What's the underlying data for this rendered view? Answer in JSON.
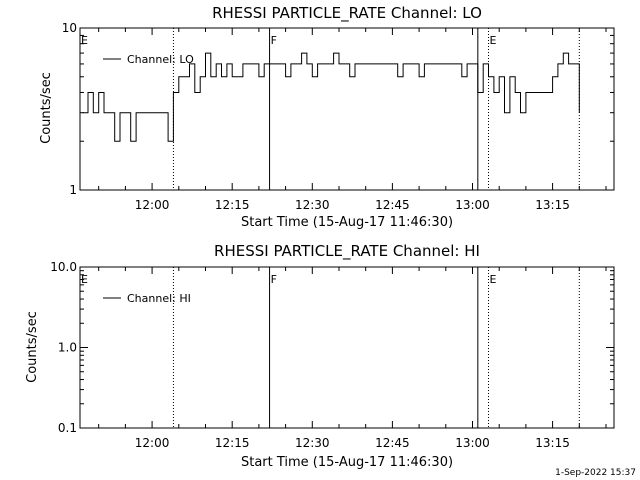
{
  "footer": {
    "date": "1-Sep-2022 15:37"
  },
  "chart_data": [
    {
      "type": "line",
      "title": "RHESSI PARTICLE_RATE Channel: LO",
      "xlabel": "Start Time (15-Aug-17 11:46:30)",
      "ylabel": "Counts/sec",
      "yscale": "log",
      "ylim": [
        1,
        10
      ],
      "xlim": [
        "11:46:30",
        "13:26:30"
      ],
      "xticks": [
        "12:00",
        "12:15",
        "12:30",
        "12:45",
        "13:00",
        "13:15"
      ],
      "yticks": [
        "1",
        "10"
      ],
      "legend": "Channel: LO",
      "legend_position": "top-left",
      "grid": false,
      "markers": [
        {
          "label": "E",
          "time": "11:46:30",
          "style": "none"
        },
        {
          "label": "",
          "time": "12:04:00",
          "style": "dotted"
        },
        {
          "label": "F",
          "time": "12:22:00",
          "style": "solid"
        },
        {
          "label": "",
          "time": "13:01:00",
          "style": "solid"
        },
        {
          "label": "E",
          "time": "13:03:00",
          "style": "dotted"
        },
        {
          "label": "",
          "time": "13:20:00",
          "style": "dotted"
        }
      ],
      "series": [
        {
          "name": "Channel: LO",
          "x": [
            "11:47",
            "11:48",
            "11:49",
            "11:50",
            "11:51",
            "11:52",
            "11:53",
            "11:54",
            "11:55",
            "11:56",
            "11:57",
            "11:58",
            "11:59",
            "12:00",
            "12:01",
            "12:02",
            "12:03",
            "12:04",
            "12:05",
            "12:06",
            "12:07",
            "12:08",
            "12:09",
            "12:10",
            "12:11",
            "12:12",
            "12:13",
            "12:14",
            "12:15",
            "12:16",
            "12:17",
            "12:18",
            "12:19",
            "12:20",
            "12:21",
            "12:22",
            "12:23",
            "12:24",
            "12:25",
            "12:26",
            "12:27",
            "12:28",
            "12:29",
            "12:30",
            "12:31",
            "12:32",
            "12:33",
            "12:34",
            "12:35",
            "12:36",
            "12:37",
            "12:38",
            "12:39",
            "12:40",
            "12:41",
            "12:42",
            "12:43",
            "12:44",
            "12:45",
            "12:46",
            "12:47",
            "12:48",
            "12:49",
            "12:50",
            "12:51",
            "12:52",
            "12:53",
            "12:54",
            "12:55",
            "12:56",
            "12:57",
            "12:58",
            "12:59",
            "13:00",
            "13:01",
            "13:02",
            "13:03",
            "13:04",
            "13:05",
            "13:06",
            "13:07",
            "13:08",
            "13:09",
            "13:10",
            "13:11",
            "13:12",
            "13:13",
            "13:14",
            "13:15",
            "13:16",
            "13:17",
            "13:18",
            "13:19",
            "13:20"
          ],
          "values": [
            3,
            4,
            3,
            4,
            3,
            3,
            2,
            3,
            3,
            2,
            3,
            3,
            3,
            3,
            3,
            3,
            2,
            4,
            5,
            5,
            6,
            4,
            5,
            7,
            5,
            6,
            5,
            6,
            5,
            5,
            6,
            6,
            6,
            5,
            6,
            6,
            6,
            6,
            5,
            6,
            6,
            7,
            6,
            5,
            6,
            6,
            6,
            7,
            6,
            6,
            5,
            6,
            6,
            6,
            6,
            6,
            6,
            6,
            6,
            5,
            6,
            6,
            6,
            5,
            6,
            6,
            6,
            6,
            6,
            6,
            6,
            5,
            6,
            6,
            4,
            6,
            5,
            4,
            5,
            3,
            5,
            4,
            3,
            4,
            4,
            4,
            4,
            4,
            5,
            6,
            7,
            6,
            6,
            3
          ]
        }
      ]
    },
    {
      "type": "line",
      "title": "RHESSI PARTICLE_RATE Channel: HI",
      "xlabel": "Start Time (15-Aug-17 11:46:30)",
      "ylabel": "Counts/sec",
      "yscale": "log",
      "ylim": [
        0.1,
        10
      ],
      "xlim": [
        "11:46:30",
        "13:26:30"
      ],
      "xticks": [
        "12:00",
        "12:15",
        "12:30",
        "12:45",
        "13:00",
        "13:15"
      ],
      "yticks": [
        "0.1",
        "1.0",
        "10.0"
      ],
      "legend": "Channel: HI",
      "legend_position": "top-left",
      "grid": false,
      "markers": [
        {
          "label": "E",
          "time": "11:46:30",
          "style": "none"
        },
        {
          "label": "",
          "time": "12:04:00",
          "style": "dotted"
        },
        {
          "label": "F",
          "time": "12:22:00",
          "style": "solid"
        },
        {
          "label": "",
          "time": "13:01:00",
          "style": "solid"
        },
        {
          "label": "E",
          "time": "13:03:00",
          "style": "dotted"
        },
        {
          "label": "",
          "time": "13:20:00",
          "style": "dotted"
        }
      ],
      "series": [
        {
          "name": "Channel: HI",
          "x": [],
          "values": []
        }
      ]
    }
  ]
}
